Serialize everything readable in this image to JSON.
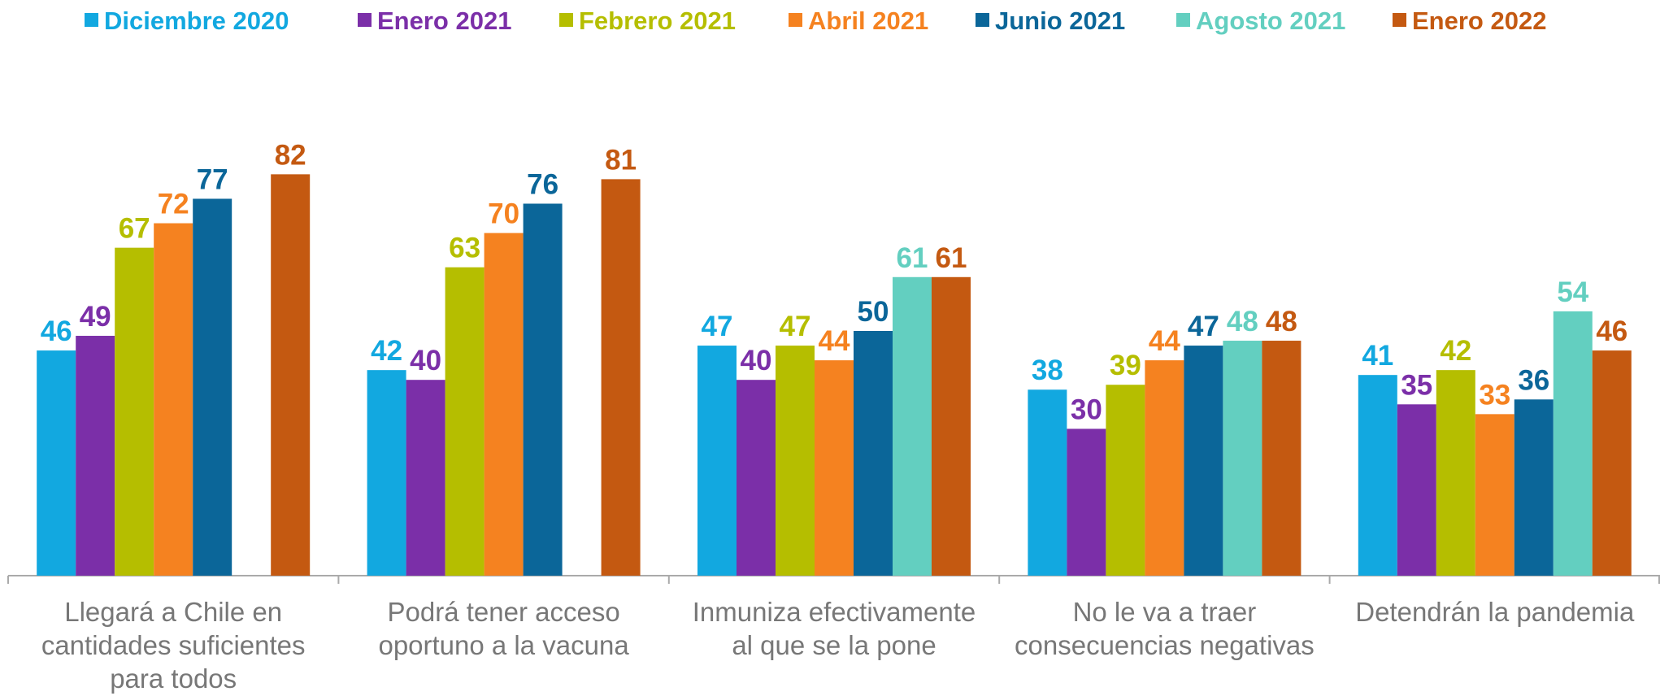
{
  "chart_data": {
    "type": "bar",
    "categories": [
      "Llegará a Chile en cantidades suficientes para todos",
      "Podrá tener acceso oportuno a la vacuna",
      "Inmuniza efectivamente al que se la pone",
      "No le va a traer consecuencias negativas",
      "Detendrán la pandemia"
    ],
    "series": [
      {
        "name": "Diciembre 2020",
        "color": "#12a8e0",
        "values": [
          46,
          42,
          47,
          38,
          41
        ]
      },
      {
        "name": "Enero 2021",
        "color": "#7b2fa8",
        "values": [
          49,
          40,
          40,
          30,
          35
        ]
      },
      {
        "name": "Febrero 2021",
        "color": "#b5be00",
        "values": [
          67,
          63,
          47,
          39,
          42
        ]
      },
      {
        "name": "Abril 2021",
        "color": "#f58220",
        "values": [
          72,
          70,
          44,
          44,
          33
        ]
      },
      {
        "name": "Junio 2021",
        "color": "#0b6699",
        "values": [
          77,
          76,
          50,
          47,
          36
        ]
      },
      {
        "name": "Agosto 2021",
        "color": "#63cfc0",
        "values": [
          null,
          null,
          61,
          48,
          54
        ]
      },
      {
        "name": "Enero 2022",
        "color": "#c45911",
        "values": [
          82,
          81,
          61,
          48,
          46
        ]
      }
    ]
  }
}
